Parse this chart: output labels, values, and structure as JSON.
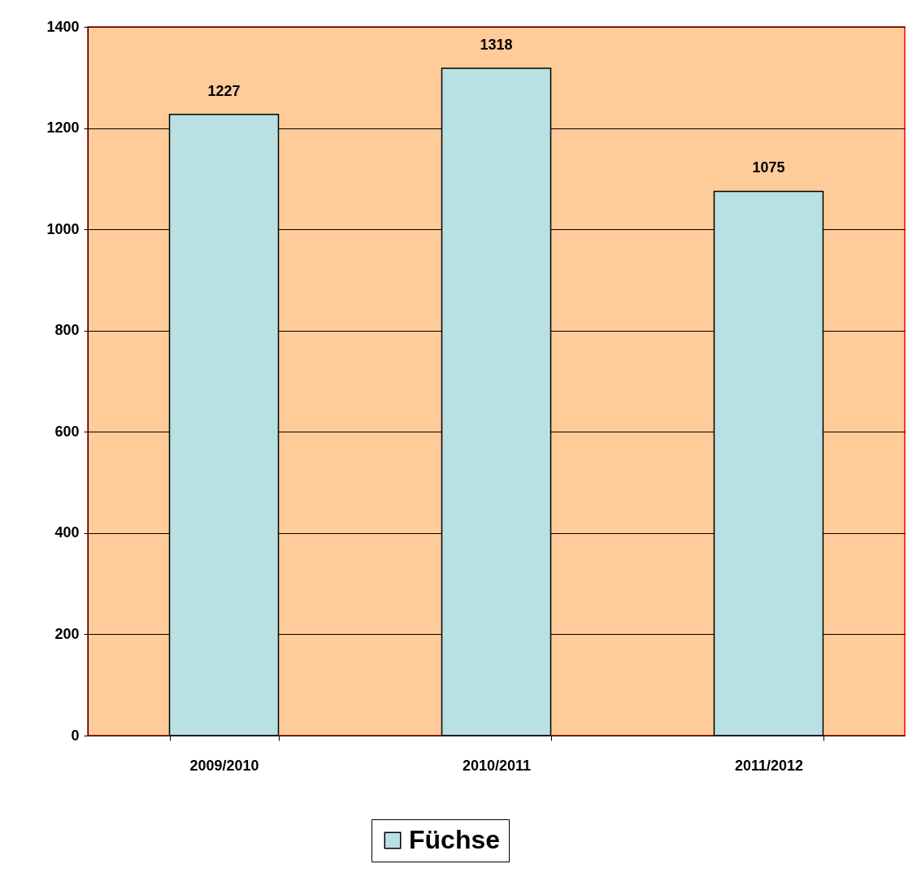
{
  "chart_data": {
    "type": "bar",
    "categories": [
      "2009/2010",
      "2010/2011",
      "2011/2012"
    ],
    "series": [
      {
        "name": "Füchse",
        "color": "#b9e0e3",
        "values": [
          1227,
          1318,
          1075
        ]
      }
    ],
    "ylim": [
      0,
      1400
    ],
    "yticks": [
      0,
      200,
      400,
      600,
      800,
      1000,
      1200,
      1400
    ],
    "grid": "y",
    "data_labels": true,
    "legend": "bottom"
  }
}
